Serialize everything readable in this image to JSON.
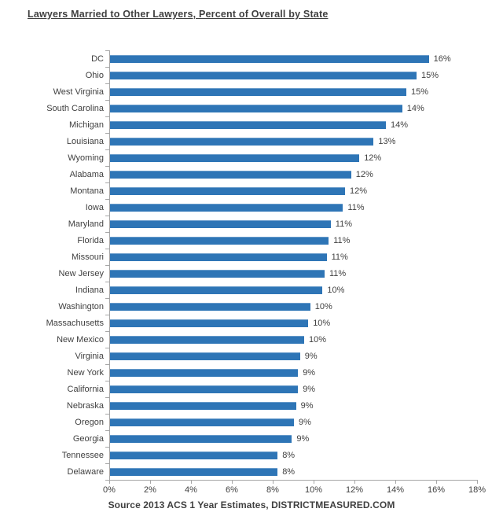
{
  "colors": {
    "bar": "#2E75B6",
    "axis": "#A6A6A6",
    "text": "#404040"
  },
  "chart_data": {
    "type": "bar",
    "orientation": "horizontal",
    "title": "Lawyers Married to Other Lawyers, Percent of Overall by State",
    "source_note": "Source 2013 ACS 1 Year Estimates, DISTRICTMEASURED.COM",
    "categories": [
      "DC",
      "Ohio",
      "West Virginia",
      "South Carolina",
      "Michigan",
      "Louisiana",
      "Wyoming",
      "Alabama",
      "Montana",
      "Iowa",
      "Maryland",
      "Florida",
      "Missouri",
      "New Jersey",
      "Indiana",
      "Washington",
      "Massachusetts",
      "New Mexico",
      "Virginia",
      "New York",
      "California",
      "Nebraska",
      "Oregon",
      "Georgia",
      "Tennessee",
      "Delaware"
    ],
    "values": [
      16,
      15,
      15,
      14,
      14,
      13,
      12,
      12,
      12,
      11,
      11,
      11,
      11,
      11,
      10,
      10,
      10,
      10,
      9,
      9,
      9,
      9,
      9,
      9,
      8,
      8
    ],
    "values_precise": [
      15.6,
      15.0,
      14.5,
      14.3,
      13.5,
      12.9,
      12.2,
      11.8,
      11.5,
      11.4,
      10.8,
      10.7,
      10.6,
      10.5,
      10.4,
      9.8,
      9.7,
      9.5,
      9.3,
      9.2,
      9.2,
      9.1,
      9.0,
      8.9,
      8.2,
      8.2
    ],
    "value_labels": [
      "16%",
      "15%",
      "15%",
      "14%",
      "14%",
      "13%",
      "12%",
      "12%",
      "12%",
      "11%",
      "11%",
      "11%",
      "11%",
      "11%",
      "10%",
      "10%",
      "10%",
      "10%",
      "9%",
      "9%",
      "9%",
      "9%",
      "9%",
      "9%",
      "8%",
      "8%"
    ],
    "xlabel": "",
    "ylabel": "",
    "xlim": [
      0,
      18
    ],
    "x_ticks": [
      "0%",
      "2%",
      "4%",
      "6%",
      "8%",
      "10%",
      "12%",
      "14%",
      "16%",
      "18%"
    ],
    "grid": false,
    "legend": false,
    "data_labels": true
  }
}
